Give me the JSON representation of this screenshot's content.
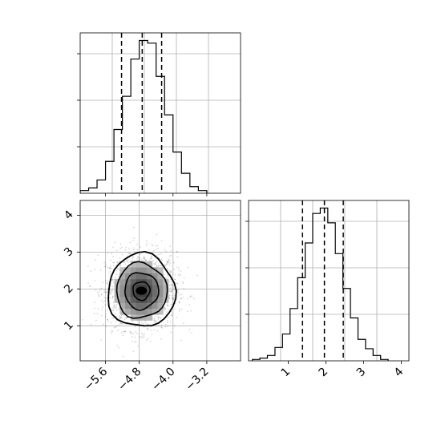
{
  "chart_data": [
    {
      "panel": "top-left",
      "type": "histogram",
      "xlim": [
        -6.2,
        -2.4
      ],
      "bin_edges": [
        -6.2,
        -6.0,
        -5.8,
        -5.6,
        -5.4,
        -5.2,
        -5.0,
        -4.8,
        -4.6,
        -4.4,
        -4.2,
        -4.0,
        -3.8,
        -3.6,
        -3.4,
        -3.2
      ],
      "counts": [
        2,
        4,
        10,
        24,
        48,
        73,
        101,
        115,
        113,
        88,
        59,
        31,
        15,
        5,
        2
      ],
      "quantile_lines": [
        -5.22,
        -4.73,
        -4.27
      ],
      "grid": true,
      "xticklabels": [],
      "yticklabels": []
    },
    {
      "panel": "bottom-left",
      "type": "density-contour",
      "xlim": [
        -6.2,
        -2.4
      ],
      "ylim": [
        0.05,
        4.4
      ],
      "center": [
        -4.75,
        1.95
      ],
      "sigma": [
        0.4,
        0.5
      ],
      "grid": true,
      "xticks": [
        -5.6,
        -4.8,
        -4.0,
        -3.2
      ],
      "xticklabels": [
        "−5.6",
        "−4.8",
        "−4.0",
        "−3.2"
      ],
      "yticks": [
        1,
        2,
        3,
        4
      ],
      "yticklabels": [
        "1",
        "2",
        "3",
        "4"
      ]
    },
    {
      "panel": "bottom-right",
      "type": "histogram",
      "xlim": [
        -0.05,
        4.2
      ],
      "bin_edges": [
        0.05,
        0.25,
        0.45,
        0.65,
        0.85,
        1.05,
        1.25,
        1.45,
        1.65,
        1.85,
        2.05,
        2.25,
        2.45,
        2.65,
        2.85,
        3.05,
        3.25,
        3.45,
        3.65
      ],
      "counts": [
        1,
        2,
        4,
        10,
        20,
        39,
        62,
        88,
        110,
        114,
        103,
        80,
        54,
        32,
        16,
        9,
        4,
        1
      ],
      "quantile_lines": [
        1.38,
        1.96,
        2.46
      ],
      "grid": true,
      "xticks": [
        1,
        2,
        3,
        4
      ],
      "xticklabels": [
        "1",
        "2",
        "3",
        "4"
      ],
      "yticklabels": []
    }
  ]
}
